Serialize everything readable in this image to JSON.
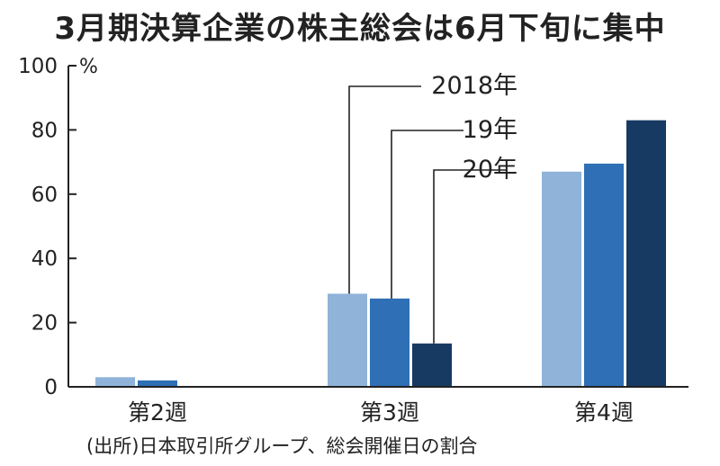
{
  "chart_data": {
    "type": "bar",
    "title": "3月期決算企業の株主総会は6月下旬に集中",
    "source": "(出所)日本取引所グループ、総会開催日の割合",
    "ylabel": "%",
    "ylim": [
      0,
      100
    ],
    "yticks": [
      "0",
      "20",
      "40",
      "60",
      "80",
      "100"
    ],
    "ytick_values": [
      0,
      20,
      40,
      60,
      80,
      100
    ],
    "categories": [
      "第2週",
      "第3週",
      "第4週"
    ],
    "series": [
      {
        "name": "2018年",
        "values": [
          3,
          29,
          67
        ],
        "color": "#8fb3d9"
      },
      {
        "name": "19年",
        "values": [
          2,
          27.5,
          69.5
        ],
        "color": "#2e6fb5"
      },
      {
        "name": "20年",
        "values": [
          0,
          13.5,
          83
        ],
        "color": "#173a63"
      }
    ],
    "grid": false,
    "legend_position": "callout"
  }
}
